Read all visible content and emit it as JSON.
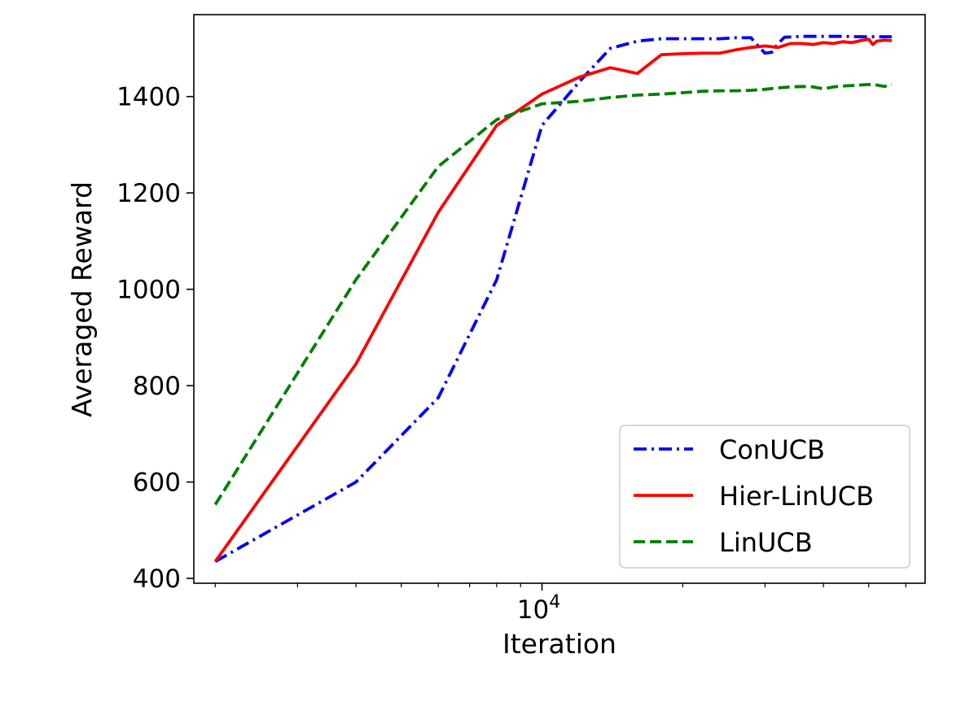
{
  "chart_data": {
    "type": "line",
    "title": "",
    "xlabel": "Iteration",
    "ylabel": "Averaged Reward",
    "xscale": "log",
    "xlim": [
      1800,
      66000
    ],
    "ylim": [
      390,
      1570
    ],
    "grid": false,
    "legend_position": "lower-right",
    "x_tick_labels": [
      {
        "value": 10000,
        "base": "10",
        "exponent": "4"
      }
    ],
    "y_ticks": [
      400,
      600,
      800,
      1000,
      1200,
      1400
    ],
    "y_tick_labels": [
      "400",
      "600",
      "800",
      "1000",
      "1200",
      "1400"
    ],
    "series": [
      {
        "name": "ConUCB",
        "color": "#0000ff",
        "style": "dash-dot",
        "x": [
          2000,
          4000,
          6000,
          8000,
          10000,
          12000,
          14000,
          16000,
          18000,
          20000,
          22000,
          24000,
          26000,
          28000,
          29000,
          30000,
          31000,
          32000,
          33000,
          36000,
          40000,
          44000,
          48000,
          52000,
          56000
        ],
        "y": [
          435,
          600,
          775,
          1020,
          1340,
          1430,
          1500,
          1515,
          1520,
          1520,
          1520,
          1520,
          1522,
          1522,
          1505,
          1490,
          1492,
          1510,
          1523,
          1525,
          1525,
          1525,
          1524,
          1524,
          1524
        ]
      },
      {
        "name": "Hier-LinUCB",
        "color": "#ff0000",
        "style": "solid",
        "x": [
          2000,
          4000,
          6000,
          8000,
          10000,
          12000,
          14000,
          16000,
          18000,
          20000,
          22000,
          24000,
          26000,
          28000,
          30000,
          32000,
          34000,
          36000,
          38000,
          40000,
          42000,
          44000,
          46000,
          48000,
          50000,
          51000,
          52000,
          54000,
          56000
        ],
        "y": [
          435,
          845,
          1160,
          1340,
          1405,
          1440,
          1460,
          1448,
          1487,
          1489,
          1490,
          1490,
          1497,
          1502,
          1505,
          1502,
          1510,
          1510,
          1508,
          1512,
          1510,
          1514,
          1512,
          1516,
          1519,
          1508,
          1515,
          1517,
          1516
        ]
      },
      {
        "name": "LinUCB",
        "color": "#008000",
        "style": "dashed",
        "x": [
          2000,
          4000,
          6000,
          8000,
          10000,
          12000,
          14000,
          16000,
          18000,
          20000,
          22000,
          24000,
          26000,
          28000,
          30000,
          32000,
          34000,
          36000,
          38000,
          40000,
          42000,
          44000,
          46000,
          48000,
          50000,
          52000,
          54000,
          56000
        ],
        "y": [
          553,
          1020,
          1255,
          1352,
          1385,
          1390,
          1398,
          1403,
          1405,
          1408,
          1411,
          1412,
          1412,
          1413,
          1415,
          1418,
          1420,
          1421,
          1420,
          1416,
          1420,
          1422,
          1423,
          1424,
          1425,
          1424,
          1421,
          1425
        ]
      }
    ]
  }
}
